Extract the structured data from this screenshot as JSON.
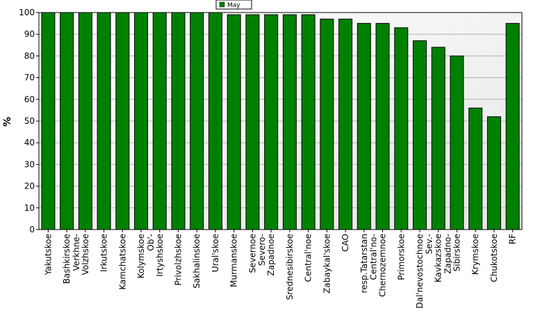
{
  "chart_data": {
    "type": "bar",
    "title": "",
    "xlabel": "",
    "ylabel": "%",
    "ylim": [
      0,
      100
    ],
    "yticks": [
      0,
      10,
      20,
      30,
      40,
      50,
      60,
      70,
      80,
      90,
      100
    ],
    "grid": true,
    "legend_position": "top-center",
    "categories": [
      "Yakutskoe",
      "Bashkirskoe",
      "Verkhne-Volzhskoe",
      "Irkutskoe",
      "Kamchatskoe",
      "Kolymskoe",
      "Ob'-Irtyshskoe",
      "Privolzhskoe",
      "Sakhalinskoe",
      "Ural'skoe",
      "Murmanskoe",
      "Severnoe",
      "Severo-Zapadnoe",
      "Srednesibirskoe",
      "Central'noe",
      "Zabaykal'skoe",
      "CAO",
      "resp.Tatarstan",
      "Central'no-Chernozemnoe",
      "Primorskoe",
      "Dal'nevostochnoe",
      "Sev.-Kavkazskoe",
      "Zapadno-Sibirskoe",
      "Krymskoe",
      "Chukotskoe",
      "RF"
    ],
    "category_label_lines": [
      [
        "Yakutskoe"
      ],
      [
        "Bashkirskoe"
      ],
      [
        "Verkhne-",
        "Volzhskoe"
      ],
      [
        "Irkutskoe"
      ],
      [
        "Kamchatskoe"
      ],
      [
        "Kolymskoe"
      ],
      [
        "Ob'-",
        "Irtyshskoe"
      ],
      [
        "Privolzhskoe"
      ],
      [
        "Sakhalinskoe"
      ],
      [
        "Ural'skoe"
      ],
      [
        "Murmanskoe"
      ],
      [
        "Severnoe"
      ],
      [
        "Severo-",
        "Zapadnoe"
      ],
      [
        "Srednesibirskoe"
      ],
      [
        "Central'noe"
      ],
      [
        "Zabaykal'skoe"
      ],
      [
        "CAO"
      ],
      [
        "resp.Tatarstan"
      ],
      [
        "Central'no-",
        "Chernozemnoe"
      ],
      [
        "Primorskoe"
      ],
      [
        "Dal'nevostochnoe"
      ],
      [
        "Sev.-",
        "Kavkazskoe"
      ],
      [
        "Zapadno-",
        "Sibirskoe"
      ],
      [
        "Krymskoe"
      ],
      [
        "Chukotskoe"
      ],
      [
        "RF"
      ]
    ],
    "series": [
      {
        "name": "May",
        "color": "#008000",
        "values": [
          100,
          100,
          100,
          100,
          100,
          100,
          100,
          100,
          100,
          100,
          99,
          99,
          99,
          99,
          99,
          97,
          97,
          95,
          95,
          93,
          87,
          84,
          80,
          56,
          52,
          95
        ]
      }
    ],
    "colors": {
      "plot_background_top": "#ffffff",
      "plot_background_bottom": "#e6e6e6",
      "grid": "#b4b4b4",
      "bar": "#008000",
      "bar_outline": "#000000"
    }
  }
}
